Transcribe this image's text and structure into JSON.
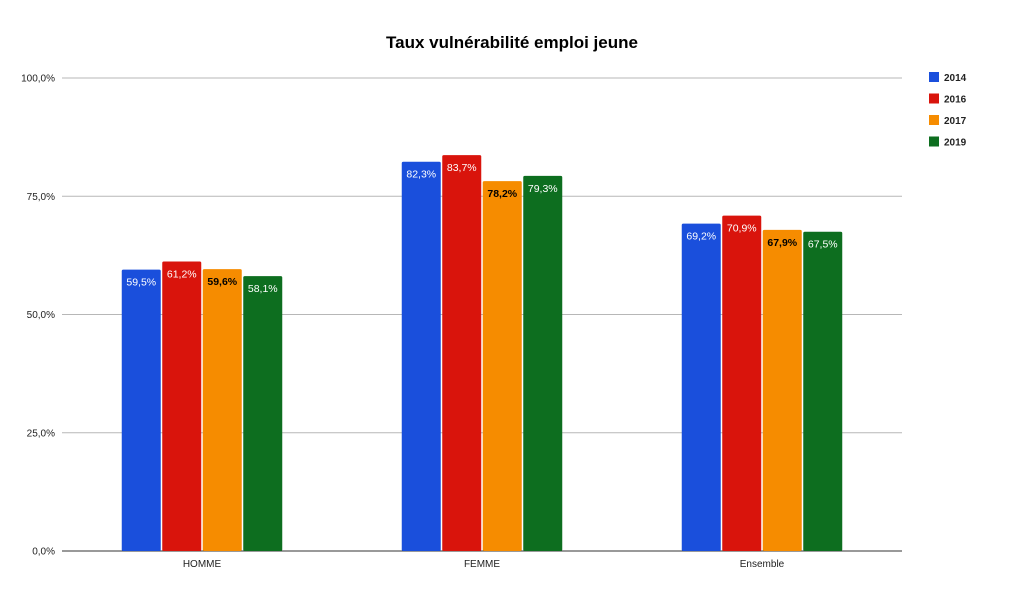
{
  "chart_data": {
    "type": "bar",
    "title": "Taux vulnérabilité emploi jeune",
    "categories": [
      "HOMME",
      "FEMME",
      "Ensemble"
    ],
    "series": [
      {
        "name": "2014",
        "color": "#1a4fdc",
        "values": [
          59.5,
          82.3,
          69.2
        ],
        "labels": [
          "59,5%",
          "82,3%",
          "69,2%"
        ],
        "label_color": "#ffffff"
      },
      {
        "name": "2016",
        "color": "#d9140c",
        "values": [
          61.2,
          83.7,
          70.9
        ],
        "labels": [
          "61,2%",
          "83,7%",
          "70,9%"
        ],
        "label_color": "#ffffff"
      },
      {
        "name": "2017",
        "color": "#f68c00",
        "values": [
          59.6,
          78.2,
          67.9
        ],
        "labels": [
          "59,6%",
          "78,2%",
          "67,9%"
        ],
        "label_color": "#000000"
      },
      {
        "name": "2019",
        "color": "#0d6e1f",
        "values": [
          58.1,
          79.3,
          67.5
        ],
        "labels": [
          "58,1%",
          "79,3%",
          "67,5%"
        ],
        "label_color": "#ffffff"
      }
    ],
    "ylim": [
      0,
      100
    ],
    "yticks": [
      0,
      25,
      50,
      75,
      100
    ],
    "ytick_labels": [
      "0,0%",
      "25,0%",
      "50,0%",
      "75,0%",
      "100,0%"
    ],
    "grid": true,
    "legend_position": "top-right"
  }
}
